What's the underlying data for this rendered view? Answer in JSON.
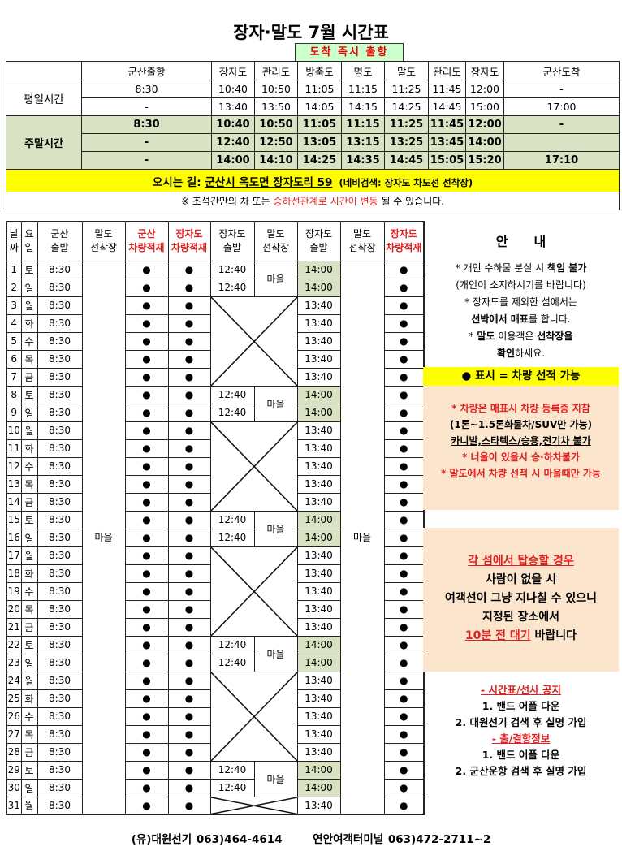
{
  "title": "장자·말도 7월 시간표",
  "arrive_notice": "도착 즉시 출항",
  "top_table": {
    "headers": [
      "",
      "군산출항",
      "장자도",
      "관리도",
      "방축도",
      "명도",
      "말도",
      "관리도",
      "장자도",
      "군산도착"
    ],
    "groups": [
      {
        "label": "평일시간",
        "weekend": false,
        "rows": [
          [
            "8:30",
            "10:40",
            "10:50",
            "11:05",
            "11:15",
            "11:25",
            "11:45",
            "12:00",
            "-"
          ],
          [
            "-",
            "13:40",
            "13:50",
            "14:05",
            "14:15",
            "14:25",
            "14:45",
            "15:00",
            "17:00"
          ]
        ]
      },
      {
        "label": "주말시간",
        "weekend": true,
        "rows": [
          [
            "8:30",
            "10:40",
            "10:50",
            "11:05",
            "11:15",
            "11:25",
            "11:45",
            "12:00",
            "-"
          ],
          [
            "-",
            "12:40",
            "12:50",
            "13:05",
            "13:15",
            "13:25",
            "13:45",
            "14:00",
            ""
          ],
          [
            "-",
            "14:00",
            "14:10",
            "14:25",
            "14:35",
            "14:45",
            "15:05",
            "15:20",
            "17:10"
          ]
        ]
      }
    ],
    "address_label": "오시는 길: ",
    "address": "군산시 옥도면 장자도리 59",
    "navi": "(네비검색: 장자도 차도선 선착장)",
    "note_pre": "※ 조석간만의 차 또는 ",
    "note_red": "승하선관계로 시간이 변동",
    "note_post": " 될 수 있습니다."
  },
  "bottom_table": {
    "headers": [
      {
        "text": "날\n짜",
        "red": false
      },
      {
        "text": "요\n일",
        "red": false
      },
      {
        "text": "군산\n출발",
        "red": false
      },
      {
        "text": "말도\n선착장",
        "red": false
      },
      {
        "text": "군산\n차량적재",
        "red": true
      },
      {
        "text": "장자도\n차량적재",
        "red": true
      },
      {
        "text": "장자도\n출발",
        "red": false
      },
      {
        "text": "말도\n선착장",
        "red": false
      },
      {
        "text": "장자도\n출발",
        "red": false
      },
      {
        "text": "말도\n선착장",
        "red": false
      },
      {
        "text": "장자도\n차량적재",
        "red": true
      }
    ],
    "gunsan_departure": "8:30",
    "malldo_pier": "마을",
    "vehicle_mark": "●",
    "weekend_jangja_departure": "12:40",
    "weekend_malldo_pier": "마을",
    "weekend_return": "14:00",
    "weekday_return": "13:40",
    "days": [
      {
        "d": "1",
        "w": "토",
        "weekend": true
      },
      {
        "d": "2",
        "w": "일",
        "weekend": true
      },
      {
        "d": "3",
        "w": "월",
        "weekend": false
      },
      {
        "d": "4",
        "w": "화",
        "weekend": false
      },
      {
        "d": "5",
        "w": "수",
        "weekend": false
      },
      {
        "d": "6",
        "w": "목",
        "weekend": false
      },
      {
        "d": "7",
        "w": "금",
        "weekend": false
      },
      {
        "d": "8",
        "w": "토",
        "weekend": true
      },
      {
        "d": "9",
        "w": "일",
        "weekend": true
      },
      {
        "d": "10",
        "w": "월",
        "weekend": false
      },
      {
        "d": "11",
        "w": "화",
        "weekend": false
      },
      {
        "d": "12",
        "w": "수",
        "weekend": false
      },
      {
        "d": "13",
        "w": "목",
        "weekend": false
      },
      {
        "d": "14",
        "w": "금",
        "weekend": false
      },
      {
        "d": "15",
        "w": "토",
        "weekend": true
      },
      {
        "d": "16",
        "w": "일",
        "weekend": true
      },
      {
        "d": "17",
        "w": "월",
        "weekend": false
      },
      {
        "d": "18",
        "w": "화",
        "weekend": false
      },
      {
        "d": "19",
        "w": "수",
        "weekend": false
      },
      {
        "d": "20",
        "w": "목",
        "weekend": false
      },
      {
        "d": "21",
        "w": "금",
        "weekend": false
      },
      {
        "d": "22",
        "w": "토",
        "weekend": true
      },
      {
        "d": "23",
        "w": "일",
        "weekend": true
      },
      {
        "d": "24",
        "w": "월",
        "weekend": false
      },
      {
        "d": "25",
        "w": "화",
        "weekend": false
      },
      {
        "d": "26",
        "w": "수",
        "weekend": false
      },
      {
        "d": "27",
        "w": "목",
        "weekend": false
      },
      {
        "d": "28",
        "w": "금",
        "weekend": false
      },
      {
        "d": "29",
        "w": "토",
        "weekend": true
      },
      {
        "d": "30",
        "w": "일",
        "weekend": true
      },
      {
        "d": "31",
        "w": "월",
        "weekend": false
      }
    ]
  },
  "guide": {
    "title": "안　　내",
    "notes": [
      [
        {
          "t": "* 개인 수하물 분실 시 "
        },
        {
          "t": "책임 불가",
          "b": true
        }
      ],
      [
        {
          "t": "(개인이 소지하시기를 바랍니다)"
        }
      ],
      [
        {
          "t": "* 장자도를 제외한 섬에서는"
        }
      ],
      [
        {
          "t": "선박에서 매표",
          "b": true
        },
        {
          "t": "를 합니다."
        }
      ],
      [
        {
          "t": "* "
        },
        {
          "t": "말도",
          "b": true
        },
        {
          "t": " 이용객은 "
        },
        {
          "t": "선착장을",
          "b": true
        }
      ],
      [
        {
          "t": "확인",
          "b": true
        },
        {
          "t": "하세요."
        }
      ]
    ],
    "legend": "● 표시 = 차량 선적 가능",
    "vehicle_notes": [
      [
        {
          "t": "* 차량은 매표시 차량 등록증 지참",
          "b": true,
          "red": true
        }
      ],
      [
        {
          "t": "(1톤~1.5톤화물차/SUV만 가능)",
          "b": true
        }
      ],
      [
        {
          "t": "카니발,스타렉스/승용,전기차 불가",
          "b": true,
          "u": true
        }
      ],
      [
        {
          "t": " "
        }
      ],
      [
        {
          "t": "* 너울이 있을시 승·하차불가",
          "b": true,
          "red": true
        }
      ],
      [
        {
          "t": "* 말도에서 차량 선적 시 마을때만 가능",
          "b": true,
          "red": true
        }
      ]
    ],
    "boarding_notes": [
      [
        {
          "t": "각 섬에서 탑승할 경우",
          "b": true,
          "red": true,
          "u": true
        }
      ],
      [
        {
          "t": "사람이 없을 시",
          "b": true
        }
      ],
      [
        {
          "t": "여객선이 그냥 지나칠 수 있으니",
          "b": true
        }
      ],
      [
        {
          "t": "지정된 장소에서",
          "b": true
        }
      ],
      [
        {
          "t": "10분 전 대기",
          "b": true,
          "red": true,
          "u": true
        },
        {
          "t": " 바랍니다",
          "b": true
        }
      ]
    ],
    "notice_notes": [
      [
        {
          "t": "- 시간표/선사 공지",
          "b": true,
          "red": true,
          "u": true
        }
      ],
      [
        {
          "t": "1. 밴드 어플 다운",
          "b": true
        }
      ],
      [
        {
          "t": "2. 대원선기 검색 후 실명 가입",
          "b": true
        }
      ],
      [
        {
          "t": " "
        }
      ],
      [
        {
          "t": "- 출/결항정보",
          "b": true,
          "red": true,
          "u": true
        }
      ],
      [
        {
          "t": "1. 밴드 어플 다운",
          "b": true
        }
      ],
      [
        {
          "t": "2. 군산운항 검색 후 실명 가입",
          "b": true
        }
      ]
    ]
  },
  "footer": {
    "company": "(유)대원선기 063)464-4614",
    "terminal": "연안여객터미널 063)472-2711~2"
  },
  "colors": {
    "weekend_bg": "#d9e2c3",
    "highlight": "#ffff00",
    "info_bg": "#fbe5cc",
    "arrive_bg": "#ccffcc",
    "accent_red": "#e02020"
  }
}
